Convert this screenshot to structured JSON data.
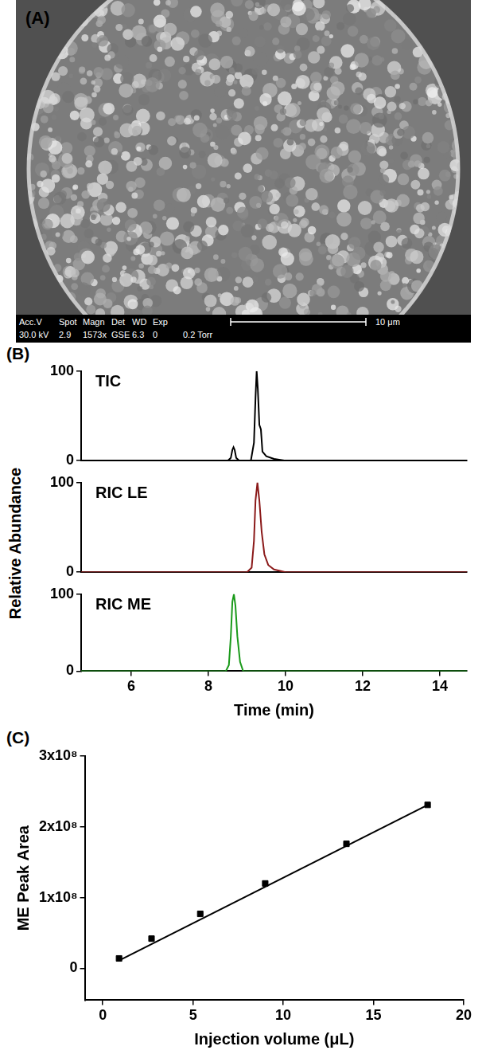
{
  "panel_a": {
    "letter": "(A)",
    "info_headers": [
      "Acc.V",
      "Spot",
      "Magn",
      "Det",
      "WD",
      "Exp"
    ],
    "info_values": [
      "30.0 kV",
      "2.9",
      "1573x",
      "GSE",
      "6.3",
      "0"
    ],
    "pressure": "0.2 Torr",
    "scale_bar": "10 μm"
  },
  "chart_data": [
    {
      "type": "line",
      "panel_label": "(B)",
      "y_label": "Relative Abundance",
      "xlim": [
        4.7,
        14.7
      ],
      "ylim": [
        0,
        100
      ],
      "yticks": [
        0,
        100
      ],
      "grid": false,
      "tick_labels": "y",
      "x": [
        4.7,
        8.5,
        8.58,
        8.62,
        8.65,
        8.68,
        8.72,
        8.8,
        9.1,
        9.18,
        9.22,
        9.25,
        9.28,
        9.32,
        9.36,
        9.4,
        9.5,
        9.7,
        10.0,
        14.7
      ],
      "series": [
        {
          "name": "TIC",
          "color": "#000000",
          "values": [
            0,
            0,
            3,
            12,
            15,
            12,
            3,
            0,
            0,
            20,
            70,
            100,
            80,
            40,
            35,
            10,
            5,
            2,
            0,
            0
          ]
        }
      ]
    },
    {
      "type": "line",
      "xlim": [
        4.7,
        14.7
      ],
      "ylim": [
        0,
        100
      ],
      "yticks": [
        0,
        100
      ],
      "grid": false,
      "tick_labels": "y",
      "x": [
        4.7,
        9.0,
        9.12,
        9.18,
        9.22,
        9.27,
        9.32,
        9.38,
        9.45,
        9.55,
        9.7,
        10.0,
        14.7
      ],
      "series": [
        {
          "name": "RIC LE",
          "color": "#8b1a1a",
          "values": [
            0,
            0,
            5,
            35,
            80,
            100,
            80,
            45,
            20,
            8,
            3,
            0,
            0
          ]
        }
      ]
    },
    {
      "type": "line",
      "x_label": "Time (min)",
      "xlim": [
        4.7,
        14.7
      ],
      "xticks": [
        6,
        8,
        10,
        12,
        14
      ],
      "ylim": [
        0,
        100
      ],
      "yticks": [
        0,
        100
      ],
      "grid": false,
      "x": [
        4.7,
        8.45,
        8.53,
        8.58,
        8.62,
        8.66,
        8.7,
        8.75,
        8.82,
        8.9,
        14.7
      ],
      "series": [
        {
          "name": "RIC ME",
          "color": "#1a9a1a",
          "values": [
            0,
            0,
            8,
            45,
            90,
            100,
            85,
            45,
            12,
            0,
            0
          ]
        }
      ]
    },
    {
      "type": "scatter",
      "panel_label": "(C)",
      "x_label": "Injection volume (μL)",
      "y_label": "ME Peak Area",
      "xlim": [
        -1,
        20
      ],
      "xticks": [
        0,
        5,
        10,
        15,
        20
      ],
      "ylim": [
        -45000000,
        300000000
      ],
      "yticks": [
        0,
        {
          "value": 100000000,
          "label": "1x10⁸"
        },
        {
          "value": 200000000,
          "label": "2x10⁸"
        },
        {
          "value": 300000000,
          "label": "3x10⁸"
        }
      ],
      "grid": false,
      "x": [
        0.9,
        2.7,
        5.4,
        9,
        13.5,
        18
      ],
      "values": [
        14000000,
        42000000,
        77000000,
        120000000,
        176000000,
        231000000
      ],
      "color": "#000000",
      "marker": "square",
      "fit": {
        "x": [
          0.9,
          18
        ],
        "values": [
          11000000,
          231000000
        ],
        "color": "#000000",
        "line_style": "solid"
      }
    }
  ]
}
